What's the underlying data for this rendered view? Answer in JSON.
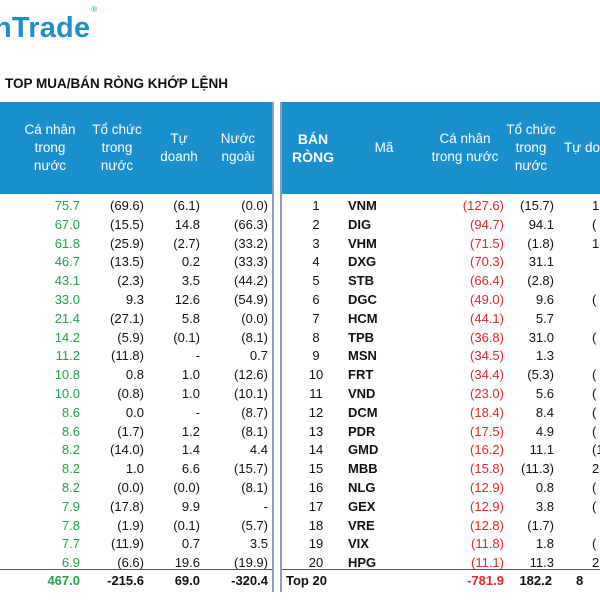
{
  "logo": {
    "text": "nTrade",
    "reg": "®"
  },
  "section_title": "TOP MUA/BÁN RÒNG KHỚP LỆNH",
  "left": {
    "headers": [
      "Cá nhân\ntrong\nnước",
      "Tổ chức\ntrong\nnước",
      "Tự\ndoanh",
      "Nước\nngoài"
    ],
    "rows": [
      [
        "75.7",
        "(69.6)",
        "(6.1)",
        "(0.0)"
      ],
      [
        "67.0",
        "(15.5)",
        "14.8",
        "(66.3)"
      ],
      [
        "61.8",
        "(25.9)",
        "(2.7)",
        "(33.2)"
      ],
      [
        "46.7",
        "(13.5)",
        "0.2",
        "(33.3)"
      ],
      [
        "43.1",
        "(2.3)",
        "3.5",
        "(44.2)"
      ],
      [
        "33.0",
        "9.3",
        "12.6",
        "(54.9)"
      ],
      [
        "21.4",
        "(27.1)",
        "5.8",
        "(0.0)"
      ],
      [
        "14.2",
        "(5.9)",
        "(0.1)",
        "(8.1)"
      ],
      [
        "11.2",
        "(11.8)",
        "-",
        "0.7"
      ],
      [
        "10.8",
        "0.8",
        "1.0",
        "(12.6)"
      ],
      [
        "10.0",
        "(0.8)",
        "1.0",
        "(10.1)"
      ],
      [
        "8.6",
        "0.0",
        "-",
        "(8.7)"
      ],
      [
        "8.6",
        "(1.7)",
        "1.2",
        "(8.1)"
      ],
      [
        "8.2",
        "(14.0)",
        "1.4",
        "4.4"
      ],
      [
        "8.2",
        "1.0",
        "6.6",
        "(15.7)"
      ],
      [
        "8.2",
        "(0.0)",
        "(0.0)",
        "(8.1)"
      ],
      [
        "7.9",
        "(17.8)",
        "9.9",
        "-"
      ],
      [
        "7.8",
        "(1.9)",
        "(0.1)",
        "(5.7)"
      ],
      [
        "7.7",
        "(11.9)",
        "0.7",
        "3.5"
      ],
      [
        "6.9",
        "(6.6)",
        "19.6",
        "(19.9)"
      ]
    ],
    "total": [
      "467.0",
      "-215.6",
      "69.0",
      "-320.4"
    ]
  },
  "right": {
    "headers": [
      "BÁN\nRÒNG",
      "Mã",
      "Cá nhân\ntrong nước",
      "Tổ chức\ntrong\nnước",
      "Tự do"
    ],
    "rows": [
      [
        "1",
        "VNM",
        "(127.6)",
        "(15.7)",
        "1"
      ],
      [
        "2",
        "DIG",
        "(94.7)",
        "94.1",
        "("
      ],
      [
        "3",
        "VHM",
        "(71.5)",
        "(1.8)",
        "1"
      ],
      [
        "4",
        "DXG",
        "(70.3)",
        "31.1",
        ""
      ],
      [
        "5",
        "STB",
        "(66.4)",
        "(2.8)",
        ""
      ],
      [
        "6",
        "DGC",
        "(49.0)",
        "9.6",
        "("
      ],
      [
        "7",
        "HCM",
        "(44.1)",
        "5.7",
        ""
      ],
      [
        "8",
        "TPB",
        "(36.8)",
        "31.0",
        "("
      ],
      [
        "9",
        "MSN",
        "(34.5)",
        "1.3",
        ""
      ],
      [
        "10",
        "FRT",
        "(34.4)",
        "(5.3)",
        "("
      ],
      [
        "11",
        "VND",
        "(23.0)",
        "5.6",
        "("
      ],
      [
        "12",
        "DCM",
        "(18.4)",
        "8.4",
        "("
      ],
      [
        "13",
        "PDR",
        "(17.5)",
        "4.9",
        "("
      ],
      [
        "14",
        "GMD",
        "(16.2)",
        "11.1",
        "(1"
      ],
      [
        "15",
        "MBB",
        "(15.8)",
        "(11.3)",
        "2"
      ],
      [
        "16",
        "NLG",
        "(12.9)",
        "0.8",
        "("
      ],
      [
        "17",
        "GEX",
        "(12.9)",
        "3.8",
        "("
      ],
      [
        "18",
        "VRE",
        "(12.8)",
        "(1.7)",
        ""
      ],
      [
        "19",
        "VIX",
        "(11.8)",
        "1.8",
        "("
      ],
      [
        "20",
        "HPG",
        "(11.1)",
        "11.3",
        "2"
      ]
    ],
    "total": [
      "Top 20",
      "-781.9",
      "182.2",
      "8"
    ]
  },
  "colors": {
    "header_bg": "#1a8fce",
    "positive": "#22a24a",
    "negative": "#e0262e",
    "logo": "#1f8fc7"
  }
}
